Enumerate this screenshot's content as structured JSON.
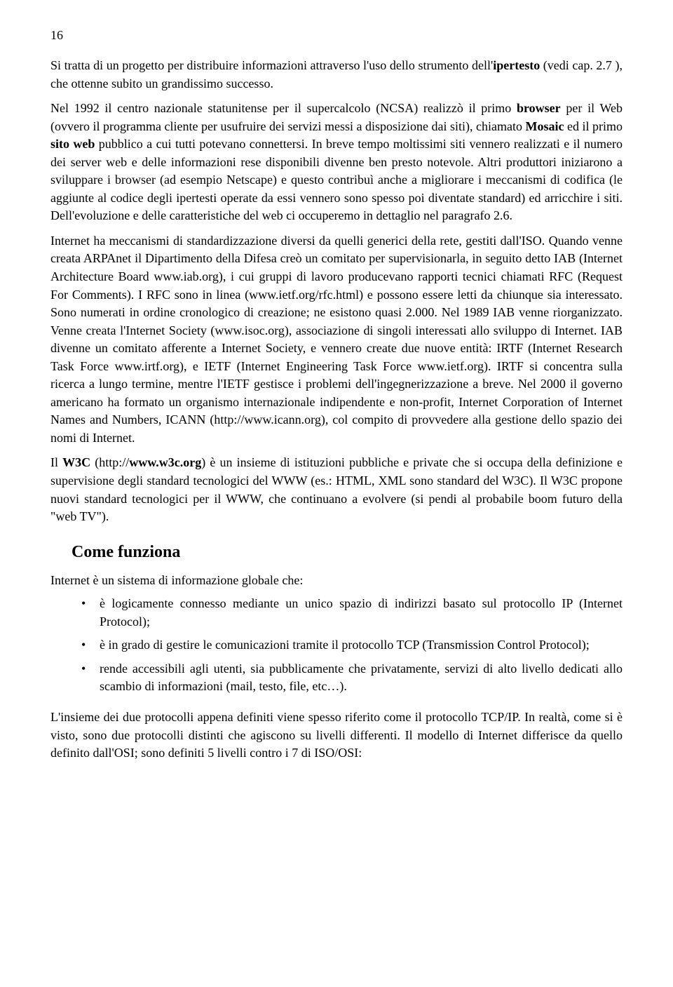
{
  "page_number": "16",
  "p1_a": "Si tratta di un progetto per distribuire informazioni attraverso l'uso dello strumento dell'",
  "p1_b_bold": "ipertesto",
  "p1_c": " (vedi cap. 2.7 ), che ottenne subito un grandissimo successo.",
  "p2_a": "Nel 1992 il centro nazionale statunitense per il supercalcolo (NCSA) realizzò il primo ",
  "p2_b_bold": "browser",
  "p2_c": " per il Web (ovvero il programma cliente per usufruire dei servizi messi a disposizione dai siti), chiamato ",
  "p2_d_bold": "Mosaic",
  "p2_e": " ed il primo ",
  "p2_f_bold": "sito web",
  "p2_g": " pubblico a cui tutti potevano connettersi. In breve tempo moltissimi siti vennero realizzati e il numero dei server web e delle informazioni rese disponibili divenne ben presto notevole. Altri produttori iniziarono a sviluppare i browser (ad esempio Netscape) e questo contribuì anche a migliorare i meccanismi di codifica (le aggiunte al codice degli ipertesti operate da essi vennero sono spesso poi diventate standard) ed arricchire i siti. Dell'evoluzione e delle caratteristiche del web ci occuperemo in dettaglio nel paragrafo 2.6.",
  "p3": "Internet  ha meccanismi di standardizzazione diversi da quelli generici della rete, gestiti dall'ISO. Quando venne creata ARPAnet il Dipartimento della Difesa creò un comitato per supervisionarla, in seguito detto IAB (Internet Architecture Board www.iab.org), i cui gruppi di lavoro producevano rapporti tecnici chiamati RFC (Request For Comments). I RFC sono in linea (www.ietf.org/rfc.html) e possono essere letti da chiunque sia interessato. Sono numerati in ordine cronologico di creazione; ne esistono quasi 2.000. Nel 1989 IAB venne riorganizzato. Venne creata l'Internet Society (www.isoc.org), associazione di singoli interessati allo sviluppo di Internet. IAB divenne un comitato afferente a Internet Society, e vennero create due nuove entità: IRTF (Internet Research Task Force www.irtf.org), e IETF (Internet Engineering Task Force www.ietf.org). IRTF si concentra sulla ricerca a lungo termine, mentre l'IETF gestisce i problemi dell'ingegnerizzazione a breve. Nel 2000 il governo americano ha formato un organismo internazionale indipendente e non-profit, Internet Corporation of Internet Names and Numbers, ICANN (http://www.icann.org), col compito di provvedere alla gestione dello spazio dei nomi di Internet.",
  "p4_a": "Il ",
  "p4_b_bold": "W3C",
  "p4_c": " (http://",
  "p4_d_bold": "www.w3c.org",
  "p4_e": ") è un insieme di istituzioni pubbliche e private che si occupa della definizione e supervisione degli standard tecnologici del WWW (es.: HTML, XML sono standard del W3C). Il W3C propone nuovi standard tecnologici per il WWW, che continuano a evolvere (si pendi al probabile boom futuro della \"web TV\").",
  "heading": "Come funziona",
  "intro": "Internet è un sistema di informazione globale che:",
  "bullet1": "è logicamente connesso mediante un unico spazio di indirizzi basato sul protocollo IP (Internet Protocol);",
  "bullet2": "è in grado di gestire le comunicazioni tramite il protocollo TCP (Transmission Control Protocol);",
  "bullet3": "rende accessibili agli utenti, sia pubblicamente che privatamente, servizi di alto livello dedicati allo scambio di informazioni (mail, testo, file, etc…).",
  "p5": "L'insieme dei due protocolli appena definiti viene spesso riferito come il protocollo TCP/IP. In realtà, come si è visto, sono due protocolli distinti che agiscono su livelli differenti. Il modello di Internet differisce da quello definito dall'OSI; sono definiti 5 livelli contro i 7 di ISO/OSI:"
}
